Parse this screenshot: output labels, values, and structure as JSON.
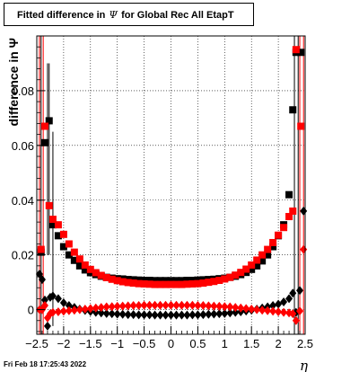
{
  "title": {
    "prefix": "Fitted difference in",
    "symbol": "Ψ",
    "suffix": "for Global Rec All EtapT"
  },
  "footer": {
    "timestamp": "Fri Feb 18 17:25:43 2022"
  },
  "chart_data": {
    "type": "scatter",
    "title": "Fitted difference in Ψ for Global Rec All EtapT",
    "xlabel": "η",
    "ylabel": "difference in Ψ",
    "xlim": [
      -2.5,
      2.5
    ],
    "ylim": [
      -0.009,
      0.1
    ],
    "x_ticks": [
      -2.5,
      -2,
      -1.5,
      -1,
      -0.5,
      0,
      0.5,
      1,
      1.5,
      2,
      2.5
    ],
    "x_tick_labels": [
      "−2.5",
      "−2",
      "−1.5",
      "−1",
      "−0.5",
      "0",
      "0.5",
      "1",
      "1.5",
      "2",
      "2.5"
    ],
    "y_ticks": [
      0,
      0.02,
      0.04,
      0.06,
      0.08
    ],
    "y_tick_labels": [
      "0",
      "0.02",
      "0.04",
      "0.06",
      "0.08"
    ],
    "grid": true,
    "colors": {
      "red": "#ff0000",
      "black": "#000000",
      "frame": "#000000"
    },
    "series": [
      {
        "marker": "square",
        "color": "#000000",
        "points": [
          {
            "x": -2.42,
            "y": 0.021
          },
          {
            "x": -2.35,
            "y": 0.061
          },
          {
            "x": -2.27,
            "y": 0.069
          },
          {
            "x": -2.2,
            "y": 0.031
          },
          {
            "x": -2.1,
            "y": 0.027
          },
          {
            "x": -2.0,
            "y": 0.023
          },
          {
            "x": -1.9,
            "y": 0.02
          },
          {
            "x": -1.8,
            "y": 0.018
          },
          {
            "x": -1.7,
            "y": 0.016
          },
          {
            "x": -1.6,
            "y": 0.0145
          },
          {
            "x": -1.5,
            "y": 0.0135
          },
          {
            "x": -1.4,
            "y": 0.0128
          },
          {
            "x": -1.3,
            "y": 0.0122
          },
          {
            "x": -1.2,
            "y": 0.0118
          },
          {
            "x": -1.1,
            "y": 0.0115
          },
          {
            "x": -1.0,
            "y": 0.0113
          },
          {
            "x": -0.9,
            "y": 0.0112
          },
          {
            "x": -0.8,
            "y": 0.011
          },
          {
            "x": -0.7,
            "y": 0.0109
          },
          {
            "x": -0.6,
            "y": 0.0108
          },
          {
            "x": -0.5,
            "y": 0.0107
          },
          {
            "x": -0.4,
            "y": 0.0107
          },
          {
            "x": -0.3,
            "y": 0.0106
          },
          {
            "x": -0.2,
            "y": 0.0106
          },
          {
            "x": -0.1,
            "y": 0.0106
          },
          {
            "x": 0.0,
            "y": 0.0106
          },
          {
            "x": 0.1,
            "y": 0.0106
          },
          {
            "x": 0.2,
            "y": 0.0106
          },
          {
            "x": 0.3,
            "y": 0.0107
          },
          {
            "x": 0.4,
            "y": 0.0107
          },
          {
            "x": 0.5,
            "y": 0.0108
          },
          {
            "x": 0.6,
            "y": 0.0109
          },
          {
            "x": 0.7,
            "y": 0.011
          },
          {
            "x": 0.8,
            "y": 0.0111
          },
          {
            "x": 0.9,
            "y": 0.0113
          },
          {
            "x": 1.0,
            "y": 0.0115
          },
          {
            "x": 1.1,
            "y": 0.0118
          },
          {
            "x": 1.2,
            "y": 0.0122
          },
          {
            "x": 1.3,
            "y": 0.0128
          },
          {
            "x": 1.4,
            "y": 0.0136
          },
          {
            "x": 1.5,
            "y": 0.0147
          },
          {
            "x": 1.6,
            "y": 0.016
          },
          {
            "x": 1.7,
            "y": 0.0178
          },
          {
            "x": 1.8,
            "y": 0.02
          },
          {
            "x": 1.9,
            "y": 0.023
          },
          {
            "x": 2.0,
            "y": 0.027
          },
          {
            "x": 2.1,
            "y": 0.031
          },
          {
            "x": 2.2,
            "y": 0.042
          },
          {
            "x": 2.27,
            "y": 0.073
          },
          {
            "x": 2.33,
            "y": 0.094
          },
          {
            "x": 2.42,
            "y": 0.094
          }
        ]
      },
      {
        "marker": "square",
        "color": "#ff0000",
        "points": [
          {
            "x": -2.42,
            "y": 0.022
          },
          {
            "x": -2.35,
            "y": 0.067
          },
          {
            "x": -2.27,
            "y": 0.038
          },
          {
            "x": -2.2,
            "y": 0.033
          },
          {
            "x": -2.1,
            "y": 0.031
          },
          {
            "x": -2.0,
            "y": 0.0275
          },
          {
            "x": -1.9,
            "y": 0.024
          },
          {
            "x": -1.8,
            "y": 0.021
          },
          {
            "x": -1.7,
            "y": 0.0185
          },
          {
            "x": -1.6,
            "y": 0.0163
          },
          {
            "x": -1.5,
            "y": 0.0147
          },
          {
            "x": -1.4,
            "y": 0.0135
          },
          {
            "x": -1.3,
            "y": 0.0125
          },
          {
            "x": -1.2,
            "y": 0.0117
          },
          {
            "x": -1.1,
            "y": 0.0111
          },
          {
            "x": -1.0,
            "y": 0.0106
          },
          {
            "x": -0.9,
            "y": 0.0102
          },
          {
            "x": -0.8,
            "y": 0.0099
          },
          {
            "x": -0.7,
            "y": 0.0097
          },
          {
            "x": -0.6,
            "y": 0.0095
          },
          {
            "x": -0.5,
            "y": 0.0094
          },
          {
            "x": -0.4,
            "y": 0.0093
          },
          {
            "x": -0.3,
            "y": 0.0092
          },
          {
            "x": -0.2,
            "y": 0.0092
          },
          {
            "x": -0.1,
            "y": 0.0092
          },
          {
            "x": 0.0,
            "y": 0.0092
          },
          {
            "x": 0.1,
            "y": 0.0092
          },
          {
            "x": 0.2,
            "y": 0.0092
          },
          {
            "x": 0.3,
            "y": 0.0093
          },
          {
            "x": 0.4,
            "y": 0.0094
          },
          {
            "x": 0.5,
            "y": 0.0095
          },
          {
            "x": 0.6,
            "y": 0.0097
          },
          {
            "x": 0.7,
            "y": 0.01
          },
          {
            "x": 0.8,
            "y": 0.0103
          },
          {
            "x": 0.9,
            "y": 0.0107
          },
          {
            "x": 1.0,
            "y": 0.0112
          },
          {
            "x": 1.1,
            "y": 0.0118
          },
          {
            "x": 1.2,
            "y": 0.0126
          },
          {
            "x": 1.3,
            "y": 0.0136
          },
          {
            "x": 1.4,
            "y": 0.0148
          },
          {
            "x": 1.5,
            "y": 0.0163
          },
          {
            "x": 1.6,
            "y": 0.0181
          },
          {
            "x": 1.7,
            "y": 0.02
          },
          {
            "x": 1.8,
            "y": 0.022
          },
          {
            "x": 1.9,
            "y": 0.0245
          },
          {
            "x": 2.0,
            "y": 0.0272
          },
          {
            "x": 2.1,
            "y": 0.03
          },
          {
            "x": 2.2,
            "y": 0.034
          },
          {
            "x": 2.27,
            "y": 0.036
          },
          {
            "x": 2.33,
            "y": 0.095
          },
          {
            "x": 2.42,
            "y": 0.067
          }
        ]
      },
      {
        "marker": "diamond",
        "color": "#000000",
        "points": [
          {
            "x": -2.45,
            "y": 0.013
          },
          {
            "x": -2.4,
            "y": 0.011
          },
          {
            "x": -2.35,
            "y": 0.0035
          },
          {
            "x": -2.3,
            "y": -0.006
          },
          {
            "x": -2.25,
            "y": 0.0045
          },
          {
            "x": -2.2,
            "y": 0.005
          },
          {
            "x": -2.1,
            "y": 0.004
          },
          {
            "x": -2.0,
            "y": 0.0025
          },
          {
            "x": -1.9,
            "y": 0.0015
          },
          {
            "x": -1.8,
            "y": 0.0008
          },
          {
            "x": -1.7,
            "y": 0.0002
          },
          {
            "x": -1.6,
            "y": -0.0003
          },
          {
            "x": -1.5,
            "y": -0.0007
          },
          {
            "x": -1.4,
            "y": -0.001
          },
          {
            "x": -1.3,
            "y": -0.0012
          },
          {
            "x": -1.2,
            "y": -0.0014
          },
          {
            "x": -1.1,
            "y": -0.0015
          },
          {
            "x": -1.0,
            "y": -0.0016
          },
          {
            "x": -0.9,
            "y": -0.0017
          },
          {
            "x": -0.8,
            "y": -0.0018
          },
          {
            "x": -0.7,
            "y": -0.0018
          },
          {
            "x": -0.6,
            "y": -0.0019
          },
          {
            "x": -0.5,
            "y": -0.0019
          },
          {
            "x": -0.4,
            "y": -0.0019
          },
          {
            "x": -0.3,
            "y": -0.002
          },
          {
            "x": -0.2,
            "y": -0.002
          },
          {
            "x": -0.1,
            "y": -0.002
          },
          {
            "x": 0.0,
            "y": -0.002
          },
          {
            "x": 0.1,
            "y": -0.002
          },
          {
            "x": 0.2,
            "y": -0.002
          },
          {
            "x": 0.3,
            "y": -0.002
          },
          {
            "x": 0.4,
            "y": -0.0019
          },
          {
            "x": 0.5,
            "y": -0.0019
          },
          {
            "x": 0.6,
            "y": -0.0018
          },
          {
            "x": 0.7,
            "y": -0.0017
          },
          {
            "x": 0.8,
            "y": -0.0016
          },
          {
            "x": 0.9,
            "y": -0.0015
          },
          {
            "x": 1.0,
            "y": -0.0014
          },
          {
            "x": 1.1,
            "y": -0.0012
          },
          {
            "x": 1.2,
            "y": -0.001
          },
          {
            "x": 1.3,
            "y": -0.0008
          },
          {
            "x": 1.4,
            "y": -0.0005
          },
          {
            "x": 1.5,
            "y": -0.0002
          },
          {
            "x": 1.6,
            "y": 0.0002
          },
          {
            "x": 1.7,
            "y": 0.0006
          },
          {
            "x": 1.8,
            "y": 0.001
          },
          {
            "x": 1.9,
            "y": 0.0015
          },
          {
            "x": 2.0,
            "y": 0.002
          },
          {
            "x": 2.1,
            "y": 0.0028
          },
          {
            "x": 2.2,
            "y": 0.004
          },
          {
            "x": 2.27,
            "y": 0.006
          },
          {
            "x": 2.33,
            "y": -0.001
          },
          {
            "x": 2.4,
            "y": 0.007
          },
          {
            "x": 2.47,
            "y": 0.036
          }
        ]
      },
      {
        "marker": "diamond",
        "color": "#ff0000",
        "points": [
          {
            "x": -2.45,
            "y": 0.0
          },
          {
            "x": -2.4,
            "y": 0.0
          },
          {
            "x": -2.35,
            "y": 0.0015
          },
          {
            "x": -2.3,
            "y": -0.003
          },
          {
            "x": -2.25,
            "y": -0.0015
          },
          {
            "x": -2.2,
            "y": -0.001
          },
          {
            "x": -2.1,
            "y": -0.0008
          },
          {
            "x": -2.0,
            "y": -0.0006
          },
          {
            "x": -1.9,
            "y": -0.0004
          },
          {
            "x": -1.8,
            "y": -0.0002
          },
          {
            "x": -1.7,
            "y": 0.0
          },
          {
            "x": -1.6,
            "y": 0.0002
          },
          {
            "x": -1.5,
            "y": 0.0004
          },
          {
            "x": -1.4,
            "y": 0.0006
          },
          {
            "x": -1.3,
            "y": 0.0008
          },
          {
            "x": -1.2,
            "y": 0.001
          },
          {
            "x": -1.1,
            "y": 0.0011
          },
          {
            "x": -1.0,
            "y": 0.0012
          },
          {
            "x": -0.9,
            "y": 0.0013
          },
          {
            "x": -0.8,
            "y": 0.0014
          },
          {
            "x": -0.7,
            "y": 0.0015
          },
          {
            "x": -0.6,
            "y": 0.0015
          },
          {
            "x": -0.5,
            "y": 0.0016
          },
          {
            "x": -0.4,
            "y": 0.0016
          },
          {
            "x": -0.3,
            "y": 0.0016
          },
          {
            "x": -0.2,
            "y": 0.0016
          },
          {
            "x": -0.1,
            "y": 0.0016
          },
          {
            "x": 0.0,
            "y": 0.0016
          },
          {
            "x": 0.1,
            "y": 0.0016
          },
          {
            "x": 0.2,
            "y": 0.0016
          },
          {
            "x": 0.3,
            "y": 0.0016
          },
          {
            "x": 0.4,
            "y": 0.0016
          },
          {
            "x": 0.5,
            "y": 0.0015
          },
          {
            "x": 0.6,
            "y": 0.0015
          },
          {
            "x": 0.7,
            "y": 0.0014
          },
          {
            "x": 0.8,
            "y": 0.0013
          },
          {
            "x": 0.9,
            "y": 0.0012
          },
          {
            "x": 1.0,
            "y": 0.0011
          },
          {
            "x": 1.1,
            "y": 0.001
          },
          {
            "x": 1.2,
            "y": 0.0008
          },
          {
            "x": 1.3,
            "y": 0.0006
          },
          {
            "x": 1.4,
            "y": 0.0004
          },
          {
            "x": 1.5,
            "y": 0.0002
          },
          {
            "x": 1.6,
            "y": 0.0
          },
          {
            "x": 1.7,
            "y": -0.0002
          },
          {
            "x": 1.8,
            "y": -0.0004
          },
          {
            "x": 1.9,
            "y": -0.0006
          },
          {
            "x": 2.0,
            "y": -0.0008
          },
          {
            "x": 2.1,
            "y": -0.001
          },
          {
            "x": 2.2,
            "y": -0.0012
          },
          {
            "x": 2.27,
            "y": -0.0015
          },
          {
            "x": 2.33,
            "y": -0.004
          },
          {
            "x": 2.4,
            "y": -0.0005
          },
          {
            "x": 2.47,
            "y": 0.022
          }
        ]
      }
    ],
    "error_bars": [
      {
        "x": -2.42,
        "low": -0.009,
        "high": 0.1,
        "color": "#000000"
      },
      {
        "x": -2.3,
        "low": 0.02,
        "high": 0.09,
        "color": "#000000"
      },
      {
        "x": -2.27,
        "low": 0.02,
        "high": 0.09,
        "color": "#000000"
      },
      {
        "x": -2.2,
        "low": -0.006,
        "high": 0.065,
        "color": "#000000"
      },
      {
        "x": 2.3,
        "low": -0.009,
        "high": 0.1,
        "color": "#000000"
      },
      {
        "x": 2.37,
        "low": -0.009,
        "high": 0.1,
        "color": "#000000"
      },
      {
        "x": -2.45,
        "low": -0.009,
        "high": 0.1,
        "color": "#ff0000"
      },
      {
        "x": -2.38,
        "low": -0.009,
        "high": 0.1,
        "color": "#ff0000"
      },
      {
        "x": 2.4,
        "low": -0.009,
        "high": 0.1,
        "color": "#ff0000"
      },
      {
        "x": 2.47,
        "low": -0.009,
        "high": 0.1,
        "color": "#ff0000"
      }
    ]
  }
}
